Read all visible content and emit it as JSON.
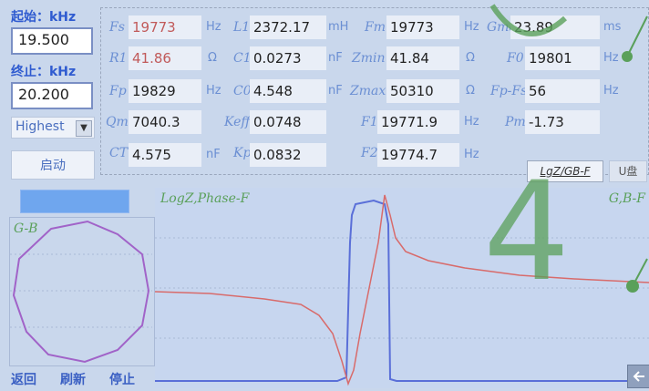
{
  "start": {
    "label": "起始：kHz",
    "value": "19.500"
  },
  "end": {
    "label": "终止：kHz",
    "value": "20.200"
  },
  "mode": {
    "selected": "Highest"
  },
  "start_button": "启动",
  "params": [
    {
      "name": "Fs",
      "value": "19773",
      "unit": "Hz",
      "red": true
    },
    {
      "name": "L1",
      "value": "2372.17",
      "unit": "mH"
    },
    {
      "name": "Fm",
      "value": "19773",
      "unit": "Hz"
    },
    {
      "name": "Gmax",
      "value": "23.89",
      "unit": "ms"
    },
    {
      "name": "R1",
      "value": "41.86",
      "unit": "Ω",
      "red": true
    },
    {
      "name": "C1",
      "value": "0.0273",
      "unit": "nF"
    },
    {
      "name": "Zmin",
      "value": "41.84",
      "unit": "Ω"
    },
    {
      "name": "F0",
      "value": "19801",
      "unit": "Hz"
    },
    {
      "name": "Fp",
      "value": "19829",
      "unit": "Hz"
    },
    {
      "name": "C0",
      "value": "4.548",
      "unit": "nF"
    },
    {
      "name": "Zmax",
      "value": "50310",
      "unit": "Ω"
    },
    {
      "name": "Fp-Fs",
      "value": "56",
      "unit": "Hz"
    },
    {
      "name": "Qm",
      "value": "7040.3",
      "unit": ""
    },
    {
      "name": "Keff",
      "value": "0.0748",
      "unit": ""
    },
    {
      "name": "F1",
      "value": "19771.9",
      "unit": "Hz"
    },
    {
      "name": "Pm",
      "value": "-1.73",
      "unit": ""
    },
    {
      "name": "CT",
      "value": "4.575",
      "unit": "nF"
    },
    {
      "name": "Kp",
      "value": "0.0832",
      "unit": ""
    },
    {
      "name": "F2",
      "value": "19774.7",
      "unit": "Hz"
    }
  ],
  "tabs": {
    "active": "LgZ/GB-F",
    "usb": "U盘"
  },
  "plot": {
    "left_label": "LogZ,Phase-F",
    "right_label": "G,B-F"
  },
  "gb_label": "G-B",
  "bottom": {
    "back": "返回",
    "refresh": "刷新",
    "stop": "停止"
  },
  "overlay_digits": {
    "big": "4"
  },
  "colors": {
    "logz": "#d86b6b",
    "phase": "#5a6fd8",
    "accent": "#5aa05a"
  }
}
